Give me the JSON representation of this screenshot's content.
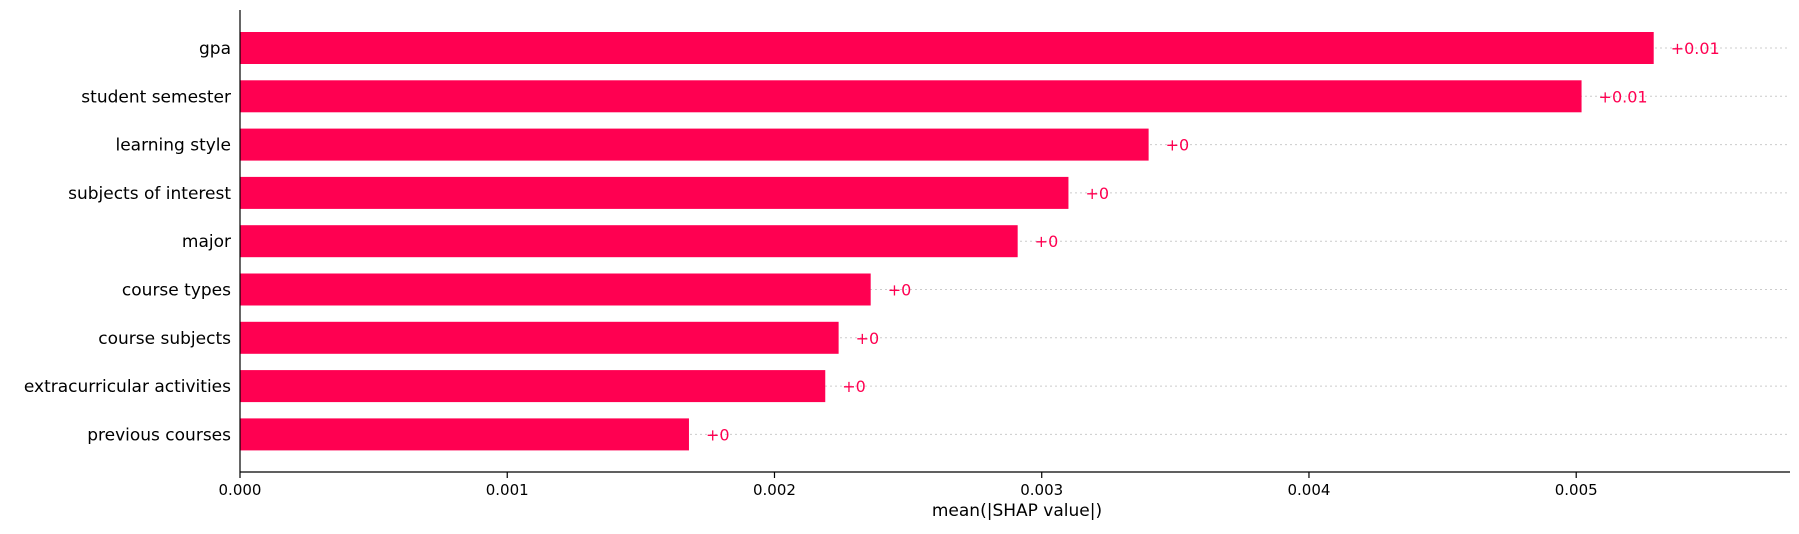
{
  "chart_data": {
    "type": "bar",
    "orientation": "horizontal",
    "categories": [
      "gpa",
      "student semester",
      "learning style",
      "subjects of interest",
      "major",
      "course types",
      "course subjects",
      "extracurricular activities",
      "previous courses"
    ],
    "values": [
      0.00529,
      0.00502,
      0.0034,
      0.0031,
      0.00291,
      0.00236,
      0.00224,
      0.00219,
      0.00168
    ],
    "value_labels": [
      "+0.01",
      "+0.01",
      "+0",
      "+0",
      "+0",
      "+0",
      "+0",
      "+0",
      "+0"
    ],
    "title": "",
    "xlabel": "mean(|SHAP value|)",
    "ylabel": "",
    "xlim": [
      0,
      0.0058
    ],
    "xticks": [
      0,
      0.001,
      0.002,
      0.003,
      0.004,
      0.005
    ],
    "xtick_labels": [
      "0.000",
      "0.001",
      "0.002",
      "0.003",
      "0.004",
      "0.005"
    ],
    "grid": "dotted horizontal guide lines per row",
    "legend": "none",
    "colors": {
      "bar": "#ff0051",
      "label": "#ff0051",
      "axis": "#000000",
      "guide": "#cccccc"
    }
  }
}
